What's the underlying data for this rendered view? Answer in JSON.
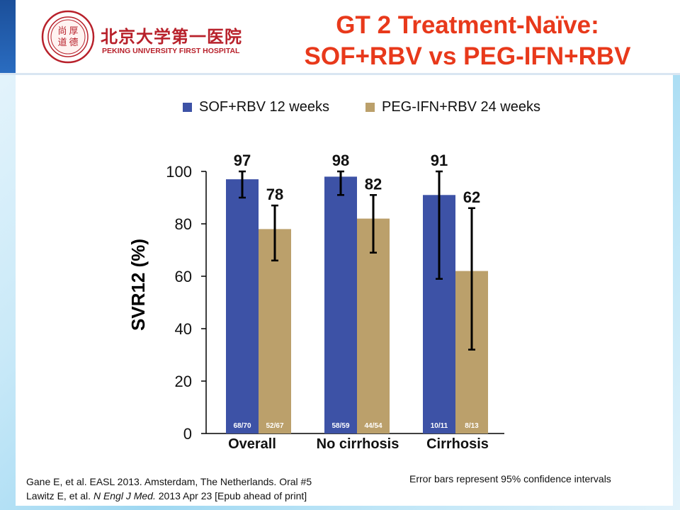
{
  "header": {
    "title_line1": "GT 2 Treatment-Naïve:",
    "title_line2": "SOF+RBV vs PEG-IFN+RBV",
    "logo_cn": "北京大学第一医院",
    "logo_en": "PEKING UNIVERSITY FIRST HOSPITAL",
    "seal_chars": [
      "尚",
      "厚",
      "道",
      "德"
    ]
  },
  "colors": {
    "title": "#e8391b",
    "sof_rbv": "#3d52a6",
    "peg_ifn_rbv": "#bba06b",
    "logo": "#b8212b"
  },
  "chart_data": {
    "type": "bar",
    "ylabel": "SVR12 (%)",
    "xlabel": "",
    "ylim": [
      0,
      100
    ],
    "yticks": [
      0,
      20,
      40,
      60,
      80,
      100
    ],
    "grid": false,
    "legend_position": "top",
    "categories": [
      "Overall",
      "No cirrhosis",
      "Cirrhosis"
    ],
    "series": [
      {
        "name": "SOF+RBV 12 weeks",
        "values": [
          97,
          98,
          91
        ],
        "value_labels": [
          "97",
          "98",
          "91"
        ],
        "ci_low": [
          90,
          91,
          59
        ],
        "ci_high": [
          100,
          100,
          100
        ],
        "counts": [
          "68/70",
          "58/59",
          "10/11"
        ]
      },
      {
        "name": "PEG-IFN+RBV 24 weeks",
        "values": [
          78,
          82,
          62
        ],
        "value_labels": [
          "78",
          "82",
          "62"
        ],
        "ci_low": [
          66,
          69,
          32
        ],
        "ci_high": [
          87,
          91,
          86
        ],
        "counts": [
          "52/67",
          "44/54",
          "8/13"
        ]
      }
    ]
  },
  "footnotes": {
    "ref1": "Gane E, et al. EASL 2013. Amsterdam, The Netherlands.  Oral #5",
    "ref2_author": "Lawitz E, et al. ",
    "ref2_journal": "N Engl J Med.",
    "ref2_rest": " 2013 Apr 23 [Epub ahead of print]",
    "error_note": "Error bars represent 95% confidence intervals"
  }
}
